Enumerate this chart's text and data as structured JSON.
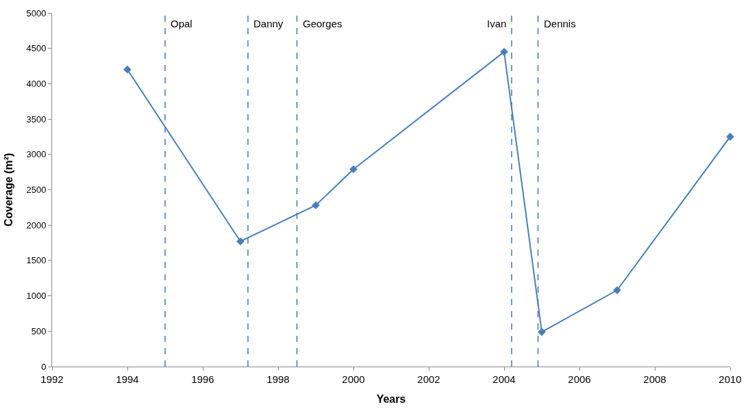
{
  "chart_data": {
    "type": "line",
    "xlabel": "Years",
    "ylabel": "Coverage (m²)",
    "x": [
      1994,
      1997,
      1999,
      2000,
      2004,
      2005,
      2007,
      2010
    ],
    "series": [
      {
        "color": "#4a7ebb",
        "values": [
          4200,
          1770,
          2280,
          2790,
          4450,
          490,
          1080,
          3250
        ]
      }
    ],
    "xlim": [
      1992,
      2010
    ],
    "xticks": [
      1992,
      1994,
      1996,
      1998,
      2000,
      2002,
      2004,
      2006,
      2008,
      2010
    ],
    "ylim": [
      0,
      5000
    ],
    "yticks": [
      0,
      500,
      1000,
      1500,
      2000,
      2500,
      3000,
      3500,
      4000,
      4500,
      5000
    ],
    "ref_lines": [
      {
        "axis": "x",
        "value": 1995.0,
        "label": "Opal",
        "color": "#4472c4",
        "line_style": "dashed"
      },
      {
        "axis": "x",
        "value": 1997.2,
        "label": "Danny",
        "color": "#4472c4",
        "line_style": "dashed"
      },
      {
        "axis": "x",
        "value": 1998.5,
        "label": "Georges",
        "color": "#4472c4",
        "line_style": "dashed"
      },
      {
        "axis": "x",
        "value": 2004.2,
        "label": "Ivan",
        "color": "#4472c4",
        "line_style": "dashed"
      },
      {
        "axis": "x",
        "value": 2004.9,
        "label": "Dennis",
        "color": "#4472c4",
        "line_style": "dashed"
      }
    ],
    "marker": "diamond",
    "line_style": "solid"
  }
}
